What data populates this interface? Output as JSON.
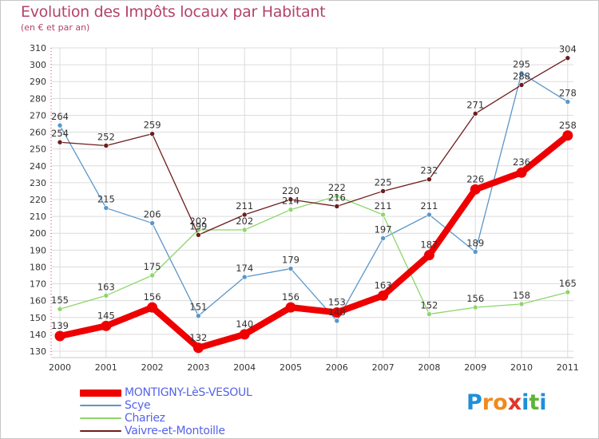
{
  "title": "Evolution des Impôts locaux par Habitant",
  "subtitle": "(en € et par an)",
  "logo": {
    "text": "Proxiti",
    "letters": [
      {
        "ch": "P",
        "color": "#1f8fd8"
      },
      {
        "ch": "r",
        "color": "#f08a1c"
      },
      {
        "ch": "o",
        "color": "#f08a1c"
      },
      {
        "ch": "x",
        "color": "#e0362b"
      },
      {
        "ch": "i",
        "color": "#1f8fd8"
      },
      {
        "ch": "t",
        "color": "#5bb534"
      },
      {
        "ch": "i",
        "color": "#1f8fd8"
      }
    ]
  },
  "chart_data": {
    "type": "line",
    "title": "Evolution des Impôts locaux par Habitant",
    "ylabel": "(en € et par an)",
    "xlabel": "",
    "categories": [
      "2000",
      "2001",
      "2002",
      "2003",
      "2004",
      "2005",
      "2006",
      "2007",
      "2008",
      "2009",
      "2010",
      "2011"
    ],
    "ylim": [
      130,
      310
    ],
    "yticks": [
      130,
      140,
      150,
      160,
      170,
      180,
      190,
      200,
      210,
      220,
      230,
      240,
      250,
      260,
      270,
      280,
      290,
      300,
      310
    ],
    "grid": true,
    "legend_position": "bottom-left",
    "series": [
      {
        "name": "MONTIGNY-LèS-VESOUL",
        "color": "#ee0000",
        "emphasis": true,
        "values": [
          139,
          145,
          156,
          132,
          140,
          156,
          153,
          163,
          187,
          226,
          236,
          258
        ]
      },
      {
        "name": "Scye",
        "color": "#5b96c8",
        "emphasis": false,
        "values": [
          264,
          215,
          206,
          151,
          174,
          179,
          148,
          197,
          211,
          189,
          295,
          278
        ]
      },
      {
        "name": "Chariez",
        "color": "#8dd66a",
        "emphasis": false,
        "values": [
          155,
          163,
          175,
          202,
          202,
          214,
          222,
          211,
          152,
          156,
          158,
          165
        ]
      },
      {
        "name": "Vaivre-et-Montoille",
        "color": "#6e1c1c",
        "emphasis": false,
        "values": [
          254,
          252,
          259,
          199,
          211,
          220,
          216,
          225,
          232,
          271,
          288,
          304
        ]
      }
    ]
  }
}
